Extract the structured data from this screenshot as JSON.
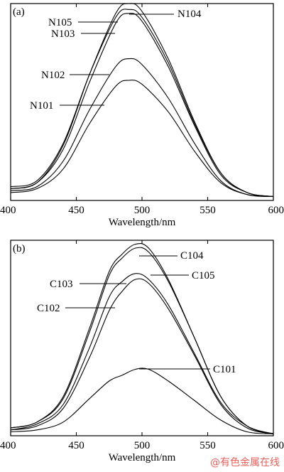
{
  "watermark": "@有色金属在线",
  "chart_data": [
    {
      "type": "line",
      "panel_label": "(a)",
      "xlabel": "Wavelength/nm",
      "ylabel": "",
      "xlim": [
        400,
        600
      ],
      "x_ticks": [
        400,
        450,
        500,
        550,
        600
      ],
      "ylim": [
        0,
        1
      ],
      "grid": false,
      "series": [
        {
          "name": "N104",
          "x": [
            400,
            420,
            440,
            460,
            480,
            490,
            500,
            520,
            540,
            560,
            580,
            600
          ],
          "y": [
            0.06,
            0.09,
            0.28,
            0.64,
            0.95,
            1.0,
            0.96,
            0.72,
            0.4,
            0.14,
            0.04,
            0.02
          ]
        },
        {
          "name": "N105",
          "x": [
            400,
            420,
            440,
            460,
            480,
            490,
            500,
            520,
            540,
            560,
            580,
            600
          ],
          "y": [
            0.07,
            0.1,
            0.29,
            0.64,
            0.93,
            0.97,
            0.93,
            0.7,
            0.39,
            0.14,
            0.04,
            0.02
          ]
        },
        {
          "name": "N103",
          "x": [
            400,
            420,
            440,
            460,
            480,
            490,
            500,
            520,
            540,
            560,
            580,
            600
          ],
          "y": [
            0.06,
            0.09,
            0.26,
            0.6,
            0.9,
            0.95,
            0.91,
            0.68,
            0.38,
            0.13,
            0.04,
            0.02
          ]
        },
        {
          "name": "N102",
          "x": [
            400,
            420,
            440,
            460,
            480,
            490,
            500,
            520,
            540,
            560,
            580,
            600
          ],
          "y": [
            0.05,
            0.07,
            0.2,
            0.46,
            0.68,
            0.72,
            0.69,
            0.52,
            0.29,
            0.1,
            0.03,
            0.02
          ]
        },
        {
          "name": "N101",
          "x": [
            400,
            420,
            440,
            460,
            480,
            490,
            500,
            520,
            540,
            560,
            580,
            600
          ],
          "y": [
            0.04,
            0.06,
            0.16,
            0.39,
            0.58,
            0.61,
            0.59,
            0.45,
            0.25,
            0.09,
            0.03,
            0.02
          ]
        }
      ]
    },
    {
      "type": "line",
      "panel_label": "(b)",
      "xlabel": "Wavelength/nm",
      "ylabel": "",
      "xlim": [
        400,
        600
      ],
      "x_ticks": [
        400,
        450,
        500,
        550,
        600
      ],
      "ylim": [
        0,
        1
      ],
      "grid": false,
      "series": [
        {
          "name": "C104",
          "x": [
            400,
            420,
            440,
            460,
            475,
            485,
            495,
            505,
            520,
            540,
            560,
            580,
            600
          ],
          "y": [
            0.04,
            0.07,
            0.2,
            0.55,
            0.84,
            0.93,
            0.98,
            0.96,
            0.8,
            0.5,
            0.2,
            0.05,
            0.01
          ]
        },
        {
          "name": "C105",
          "x": [
            400,
            420,
            440,
            460,
            475,
            485,
            495,
            505,
            520,
            540,
            560,
            580,
            600
          ],
          "y": [
            0.04,
            0.07,
            0.19,
            0.53,
            0.82,
            0.91,
            0.96,
            0.94,
            0.79,
            0.5,
            0.2,
            0.05,
            0.01
          ]
        },
        {
          "name": "C103",
          "x": [
            400,
            420,
            440,
            460,
            475,
            485,
            495,
            505,
            520,
            540,
            560,
            580,
            600
          ],
          "y": [
            0.03,
            0.06,
            0.16,
            0.45,
            0.71,
            0.79,
            0.83,
            0.8,
            0.67,
            0.42,
            0.17,
            0.05,
            0.01
          ]
        },
        {
          "name": "C102",
          "x": [
            400,
            420,
            440,
            460,
            475,
            485,
            495,
            505,
            520,
            540,
            560,
            580,
            600
          ],
          "y": [
            0.03,
            0.05,
            0.14,
            0.4,
            0.64,
            0.74,
            0.8,
            0.78,
            0.65,
            0.41,
            0.16,
            0.04,
            0.01
          ]
        },
        {
          "name": "C101",
          "x": [
            400,
            420,
            440,
            460,
            475,
            485,
            495,
            505,
            520,
            540,
            560,
            580,
            600
          ],
          "y": [
            0.02,
            0.03,
            0.07,
            0.19,
            0.28,
            0.31,
            0.34,
            0.34,
            0.28,
            0.18,
            0.08,
            0.02,
            0.01
          ]
        }
      ]
    }
  ]
}
